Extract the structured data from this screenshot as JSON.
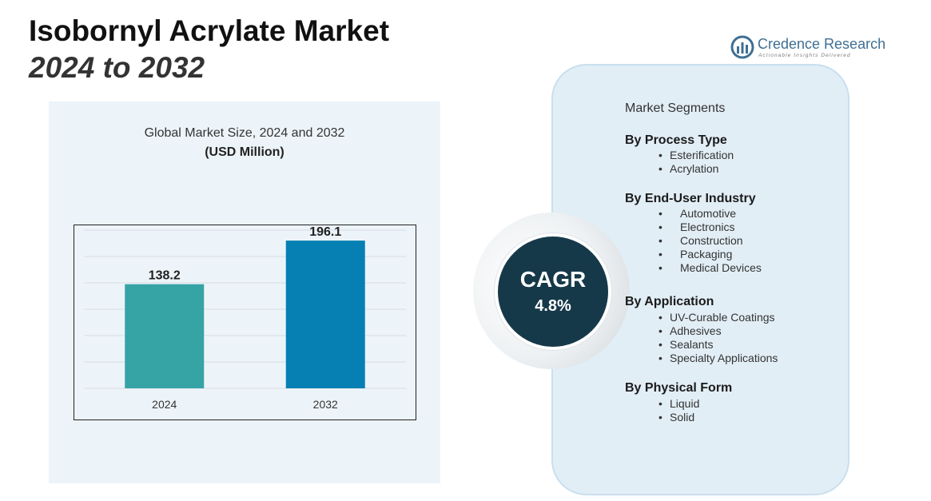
{
  "header": {
    "title": "Isobornyl Acrylate Market",
    "subtitle": "2024 to 2032"
  },
  "logo": {
    "name": "Credence Research",
    "tagline": "Actionable Insights Delivered",
    "icon": "bar-chart-logo-icon",
    "color": "#3f6f93"
  },
  "chart_data": {
    "type": "bar",
    "title": "Global Market Size, 2024 and 2032",
    "subtitle": "(USD Million)",
    "categories": [
      "2024",
      "2032"
    ],
    "values": [
      138.2,
      196.1
    ],
    "value_labels": [
      "138.2",
      "196.1"
    ],
    "bar_colors": [
      "#36a3a5",
      "#0680b3"
    ],
    "xlabel": "",
    "ylabel": "",
    "ylim": [
      0,
      210
    ],
    "grid": true,
    "legend": "none"
  },
  "cagr": {
    "label": "CAGR",
    "value": "4.8%"
  },
  "segments": {
    "title": "Market Segments",
    "groups": [
      {
        "heading": "By Process Type",
        "items": [
          "Esterification",
          "Acrylation"
        ]
      },
      {
        "heading": "By End-User Industry",
        "items": [
          "Automotive",
          "Electronics",
          "Construction",
          "Packaging",
          "Medical Devices"
        ]
      },
      {
        "heading": "By Application",
        "items": [
          "UV-Curable Coatings",
          "Adhesives",
          "Sealants",
          "Specialty Applications"
        ]
      },
      {
        "heading": "By Physical Form",
        "items": [
          "Liquid",
          "Solid"
        ]
      }
    ]
  },
  "colors": {
    "panel_bg": "#edf4f9",
    "card_bg": "#e2eef6",
    "cagr_bg": "#16394a"
  }
}
